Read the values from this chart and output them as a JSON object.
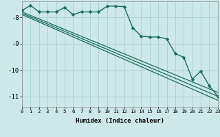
{
  "title": "",
  "xlabel": "Humidex (Indice chaleur)",
  "bg_color": "#cce8e8",
  "grid_color": "#b0d4d4",
  "line_color": "#1a6b5e",
  "xlim": [
    0,
    23
  ],
  "ylim": [
    -11.4,
    -7.4
  ],
  "xticks": [
    0,
    1,
    2,
    3,
    4,
    5,
    6,
    7,
    8,
    9,
    10,
    11,
    12,
    13,
    14,
    15,
    16,
    17,
    18,
    19,
    20,
    21,
    22,
    23
  ],
  "yticks": [
    -8,
    -9,
    -10,
    -11
  ],
  "series": [
    {
      "x": [
        0,
        1,
        2,
        3,
        4,
        5,
        6,
        7,
        8,
        9,
        10,
        11,
        12,
        13,
        14,
        15,
        16,
        17,
        18,
        19,
        20,
        21,
        22,
        23
      ],
      "y": [
        -7.75,
        -7.55,
        -7.8,
        -7.8,
        -7.8,
        -7.63,
        -7.9,
        -7.8,
        -7.8,
        -7.8,
        -7.58,
        -7.58,
        -7.6,
        -8.4,
        -8.72,
        -8.75,
        -8.75,
        -8.82,
        -9.38,
        -9.52,
        -10.35,
        -10.05,
        -10.6,
        -11.0
      ],
      "marker": "D",
      "markersize": 2.5,
      "linewidth": 1.0
    },
    {
      "x": [
        0,
        23
      ],
      "y": [
        -7.8,
        -10.85
      ],
      "marker": null,
      "linewidth": 0.9
    },
    {
      "x": [
        0,
        23
      ],
      "y": [
        -7.85,
        -11.0
      ],
      "marker": null,
      "linewidth": 0.9
    },
    {
      "x": [
        0,
        23
      ],
      "y": [
        -7.9,
        -11.15
      ],
      "marker": null,
      "linewidth": 0.9
    }
  ]
}
